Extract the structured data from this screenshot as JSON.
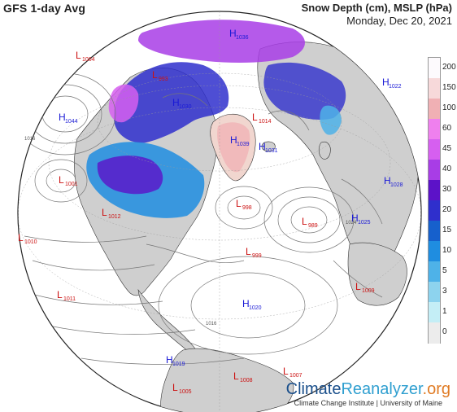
{
  "header": {
    "left_title": "GFS 1-day Avg",
    "right_title": "Snow Depth (cm), MSLP (hPa)",
    "date": "Monday, Dec 20, 2021"
  },
  "legend": {
    "ticks": [
      "200",
      "150",
      "100",
      "60",
      "45",
      "40",
      "30",
      "20",
      "15",
      "10",
      "5",
      "3",
      "1",
      "0"
    ],
    "colors": [
      "#fdfafd",
      "#f7d9da",
      "#f0b0b4",
      "#ef80ee",
      "#d65ff0",
      "#a83de6",
      "#5c12c8",
      "#2f2fcc",
      "#1660cc",
      "#1f8de0",
      "#4eb2e8",
      "#8dd3ee",
      "#c4eef6",
      "#ececec"
    ]
  },
  "colors": {
    "ocean": "#ffffff",
    "land": "#cfcfcf",
    "high": "#1a1ad6",
    "low": "#cc1111",
    "isobar": "#777777"
  },
  "pressure_centers": [
    {
      "type": "H",
      "value": "1044"
    },
    {
      "type": "L",
      "value": "1004"
    },
    {
      "type": "L",
      "value": "1001"
    },
    {
      "type": "L",
      "value": "1010"
    },
    {
      "type": "L",
      "value": "1011"
    },
    {
      "type": "L",
      "value": "1012"
    },
    {
      "type": "H",
      "value": "1030"
    },
    {
      "type": "H",
      "value": "1039"
    },
    {
      "type": "H",
      "value": "1031"
    },
    {
      "type": "L",
      "value": "1014"
    },
    {
      "type": "L",
      "value": "998"
    },
    {
      "type": "L",
      "value": "989"
    },
    {
      "type": "L",
      "value": "999"
    },
    {
      "type": "H",
      "value": "1020"
    },
    {
      "type": "H",
      "value": "1025"
    },
    {
      "type": "H",
      "value": "1028"
    },
    {
      "type": "H",
      "value": "1022"
    },
    {
      "type": "L",
      "value": "1009"
    },
    {
      "type": "H",
      "value": "1019"
    },
    {
      "type": "L",
      "value": "1008"
    },
    {
      "type": "L",
      "value": "1007"
    },
    {
      "type": "L",
      "value": "1005"
    },
    {
      "type": "L",
      "value": "993"
    },
    {
      "type": "H",
      "value": "1036"
    }
  ],
  "isobar_labels": [
    "1016",
    "1016",
    "1024"
  ],
  "brand": {
    "climate": "Climate",
    "reanalyzer": "Reanalyzer",
    "org": ".org",
    "subtitle": "Climate Change Institute | University of Maine"
  }
}
